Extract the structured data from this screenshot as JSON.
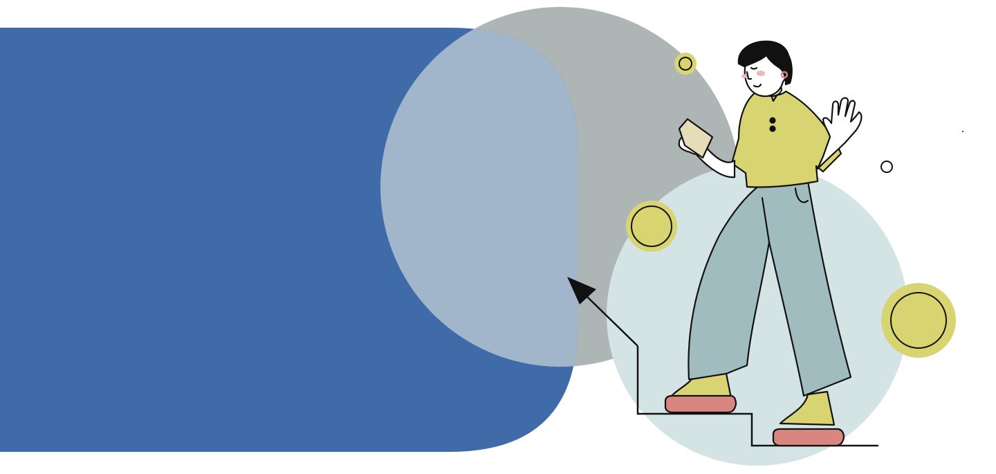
{
  "colors": {
    "background": "#ffffff",
    "blue_panel": "#406ba9",
    "gray_circle": "#adb6b5",
    "overlap": "#a1b6cb",
    "light_circle": "#d4e3e4",
    "yellow": "#d9d472",
    "pants": "#a1bcbf",
    "shoe_sole": "#d98680",
    "skin": "#ffffff",
    "hair": "#111111",
    "outline": "#111111"
  },
  "icons": {
    "figure": "person-climbing-stairs-icon",
    "arrow": "arrow-up-left-icon",
    "phone": "phone-icon"
  }
}
